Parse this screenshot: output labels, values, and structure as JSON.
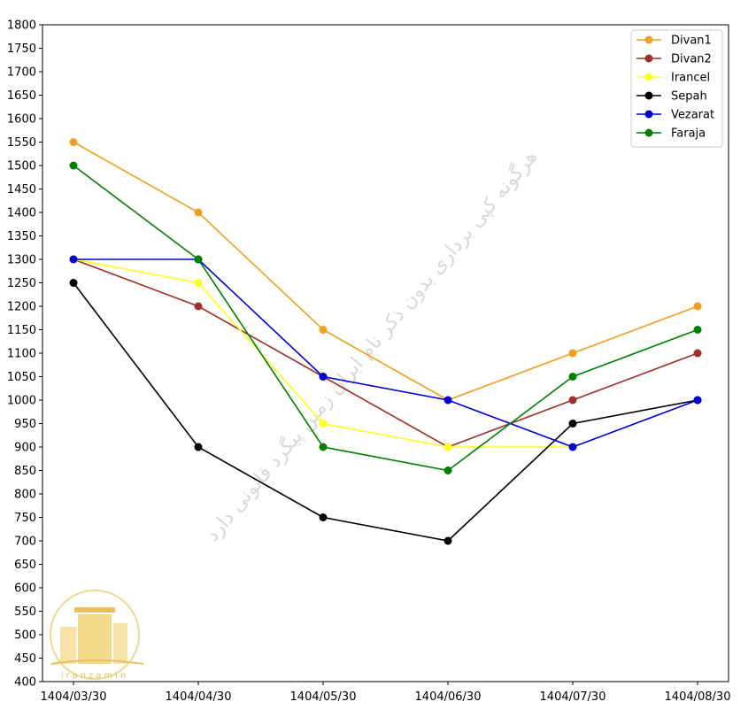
{
  "chart_data": {
    "type": "line",
    "categories": [
      "1404/03/30",
      "1404/04/30",
      "1404/05/30",
      "1404/06/30",
      "1404/07/30",
      "1404/08/30"
    ],
    "ylim": [
      400,
      1800
    ],
    "yticks": [
      400,
      450,
      500,
      550,
      600,
      650,
      700,
      750,
      800,
      850,
      900,
      950,
      1000,
      1050,
      1100,
      1150,
      1200,
      1250,
      1300,
      1350,
      1400,
      1450,
      1500,
      1550,
      1600,
      1650,
      1700,
      1750,
      1800
    ],
    "grid": false,
    "legend_position": "top-right",
    "series": [
      {
        "name": "Divan1",
        "color": "#f0a020",
        "values": [
          1550,
          1400,
          1150,
          1000,
          1100,
          1200
        ]
      },
      {
        "name": "Divan2",
        "color": "#a0302a",
        "values": [
          1300,
          1200,
          1050,
          900,
          1000,
          1100
        ]
      },
      {
        "name": "Irancel",
        "color": "#ffff20",
        "values": [
          1300,
          1250,
          950,
          900,
          900,
          null
        ]
      },
      {
        "name": "Sepah",
        "color": "#000000",
        "values": [
          1250,
          900,
          750,
          700,
          950,
          1000
        ]
      },
      {
        "name": "Vezarat",
        "color": "#0000d0",
        "values": [
          1300,
          1300,
          1050,
          1000,
          900,
          1000
        ]
      },
      {
        "name": "Faraja",
        "color": "#008000",
        "values": [
          1500,
          1300,
          900,
          850,
          1050,
          1150
        ]
      }
    ]
  },
  "watermark": {
    "text": "هرگونه کپی برداری بدون ذکر نام ایران زمین پیگرد قانونی دارد"
  },
  "logo": {
    "text": "iranzamin",
    "color": "#e8c060"
  }
}
